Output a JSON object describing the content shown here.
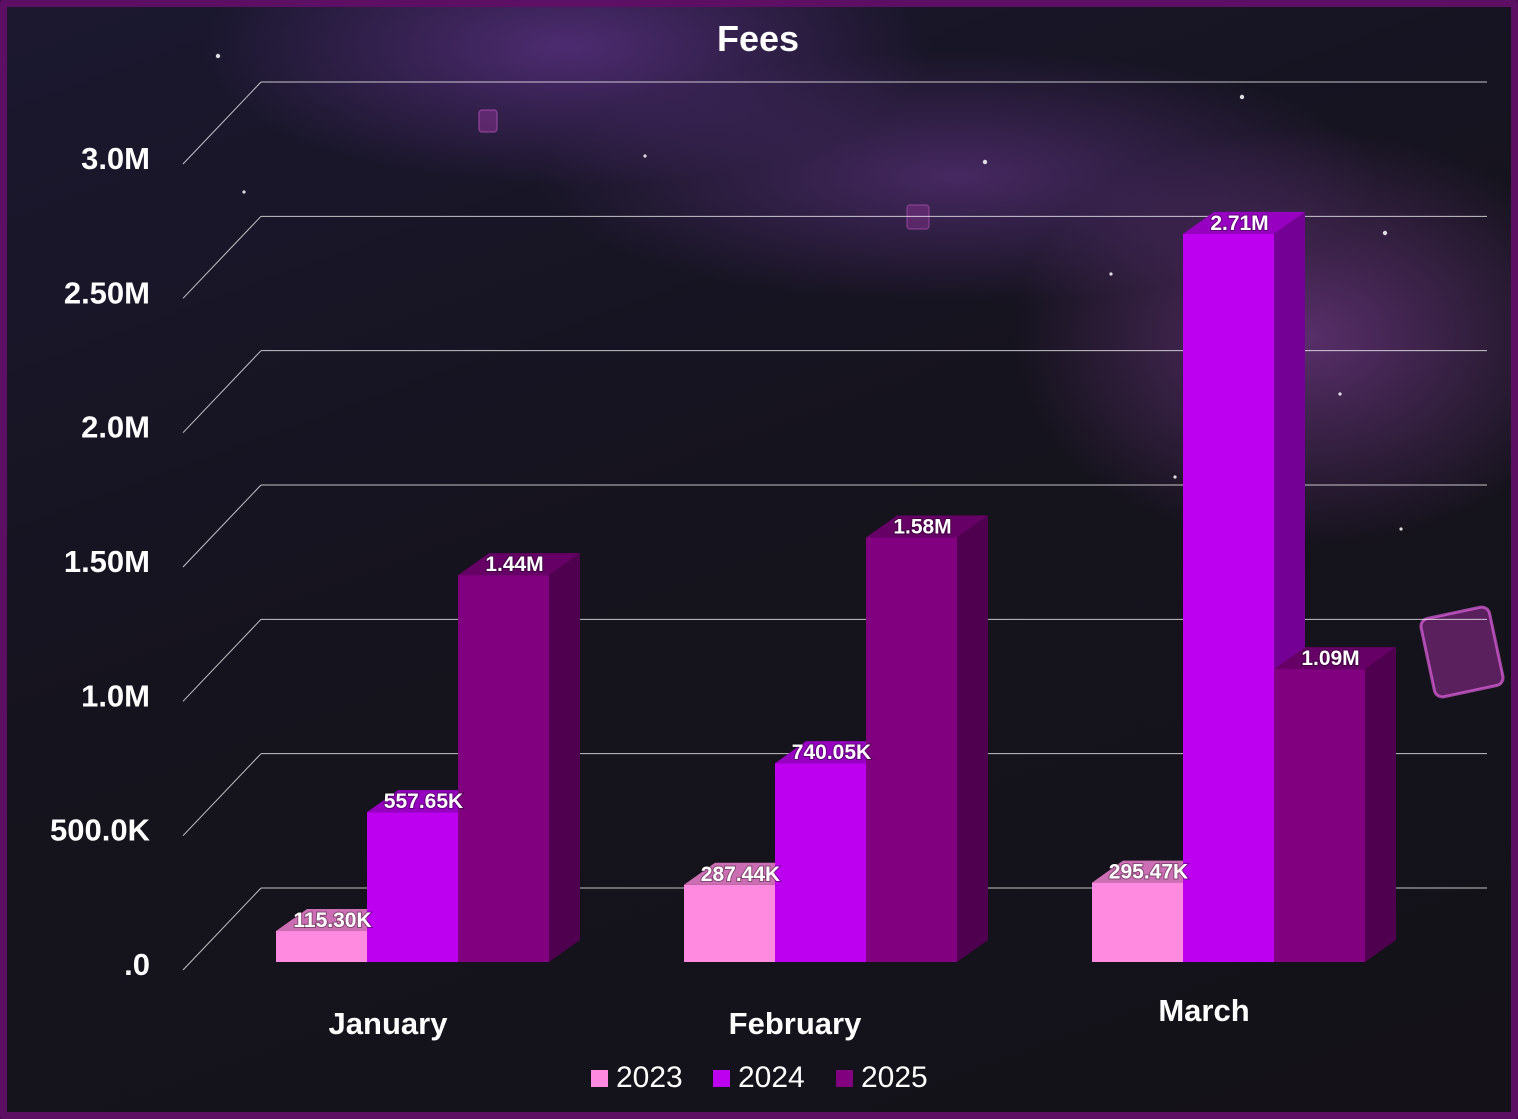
{
  "chart_data": {
    "type": "bar",
    "title": "Fees",
    "categories": [
      "January",
      "February",
      "March"
    ],
    "series": [
      {
        "name": "2023",
        "values": [
          115300,
          287440,
          295470
        ],
        "labels": [
          "115.30K",
          "287.44K",
          "295.47K"
        ]
      },
      {
        "name": "2024",
        "values": [
          557650,
          740050,
          2710000
        ],
        "labels": [
          "557.65K",
          "740.05K",
          "2.71M"
        ]
      },
      {
        "name": "2025",
        "values": [
          1440000,
          1580000,
          1090000
        ],
        "labels": [
          "1.44M",
          "1.58M",
          "1.09M"
        ]
      }
    ],
    "yticks": [
      0,
      500000,
      1000000,
      1500000,
      2000000,
      2500000,
      3000000
    ],
    "ytick_labels": [
      ".0",
      "500.0K",
      "1.0M",
      "1.50M",
      "2.0M",
      "2.50M",
      "3.0M"
    ],
    "ylim": [
      0,
      3000000
    ],
    "grid": true,
    "legend_position": "bottom",
    "colors": {
      "2023": "#ff8ae0",
      "2024": "#bd00f0",
      "2025": "#800080"
    }
  }
}
